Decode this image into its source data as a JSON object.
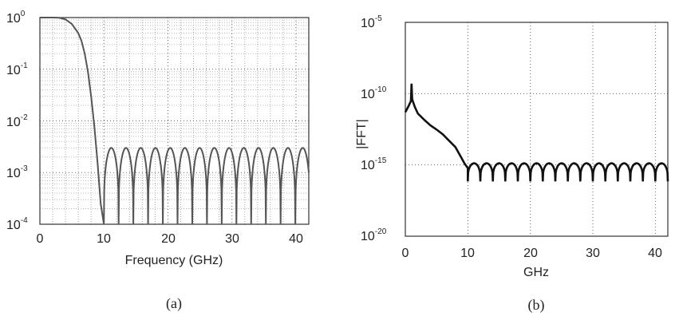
{
  "chart_data": [
    {
      "type": "line",
      "caption": "(a)",
      "xlabel": "Frequency (GHz)",
      "ylabel": "",
      "xlim": [
        0,
        42
      ],
      "ylim": [
        0.0001,
        1
      ],
      "yscale": "log",
      "xticks": [
        "0",
        "10",
        "20",
        "30",
        "40"
      ],
      "yticks": [
        {
          "base": "10",
          "exp": "0"
        },
        {
          "base": "10",
          "exp": "-1"
        },
        {
          "base": "10",
          "exp": "-2"
        },
        {
          "base": "10",
          "exp": "-3"
        },
        {
          "base": "10",
          "exp": "-4"
        }
      ],
      "grid": true,
      "grid_minor": true,
      "series": [
        {
          "color": "#555555",
          "passband": {
            "x": [
              0,
              2,
              3,
              4,
              5,
              6,
              6.5,
              7,
              7.5,
              8,
              8.5,
              9,
              9.5,
              10
            ],
            "y": [
              1,
              1,
              0.99,
              0.92,
              0.75,
              0.5,
              0.35,
              0.2,
              0.09,
              0.03,
              0.008,
              0.0016,
              0.00025,
              0.0001
            ]
          },
          "stopband": {
            "start": 10,
            "end": 42,
            "period": 2.3,
            "peak": 0.003,
            "floor": 0.0001
          }
        }
      ]
    },
    {
      "type": "line",
      "caption": "(b)",
      "xlabel": "GHz",
      "ylabel": "|FFT|",
      "xlim": [
        0,
        42
      ],
      "ylim": [
        1e-20,
        1e-05
      ],
      "yscale": "log",
      "xticks": [
        "0",
        "10",
        "20",
        "30",
        "40"
      ],
      "yticks": [
        {
          "base": "10",
          "exp": "-5"
        },
        {
          "base": "10",
          "exp": "-10"
        },
        {
          "base": "10",
          "exp": "-15"
        },
        {
          "base": "10",
          "exp": "-20"
        }
      ],
      "grid": true,
      "grid_minor": false,
      "series": [
        {
          "color": "#111111",
          "passband": {
            "x": [
              0,
              0.5,
              0.9,
              1.0,
              1.1,
              1.5,
              2,
              3,
              4,
              5,
              6,
              7,
              8,
              9,
              9.5,
              10
            ],
            "y": [
              5e-12,
              1.3e-11,
              3e-11,
              5e-10,
              4e-11,
              1.2e-11,
              4e-12,
              1.5e-12,
              6e-13,
              3e-13,
              1.4e-13,
              5e-14,
              1.8e-14,
              3e-15,
              1.2e-15,
              6e-16
            ]
          },
          "stopband": {
            "start": 10,
            "end": 42,
            "period": 2.0,
            "peak": 1.3e-15,
            "floor": 7e-17
          }
        }
      ]
    }
  ]
}
